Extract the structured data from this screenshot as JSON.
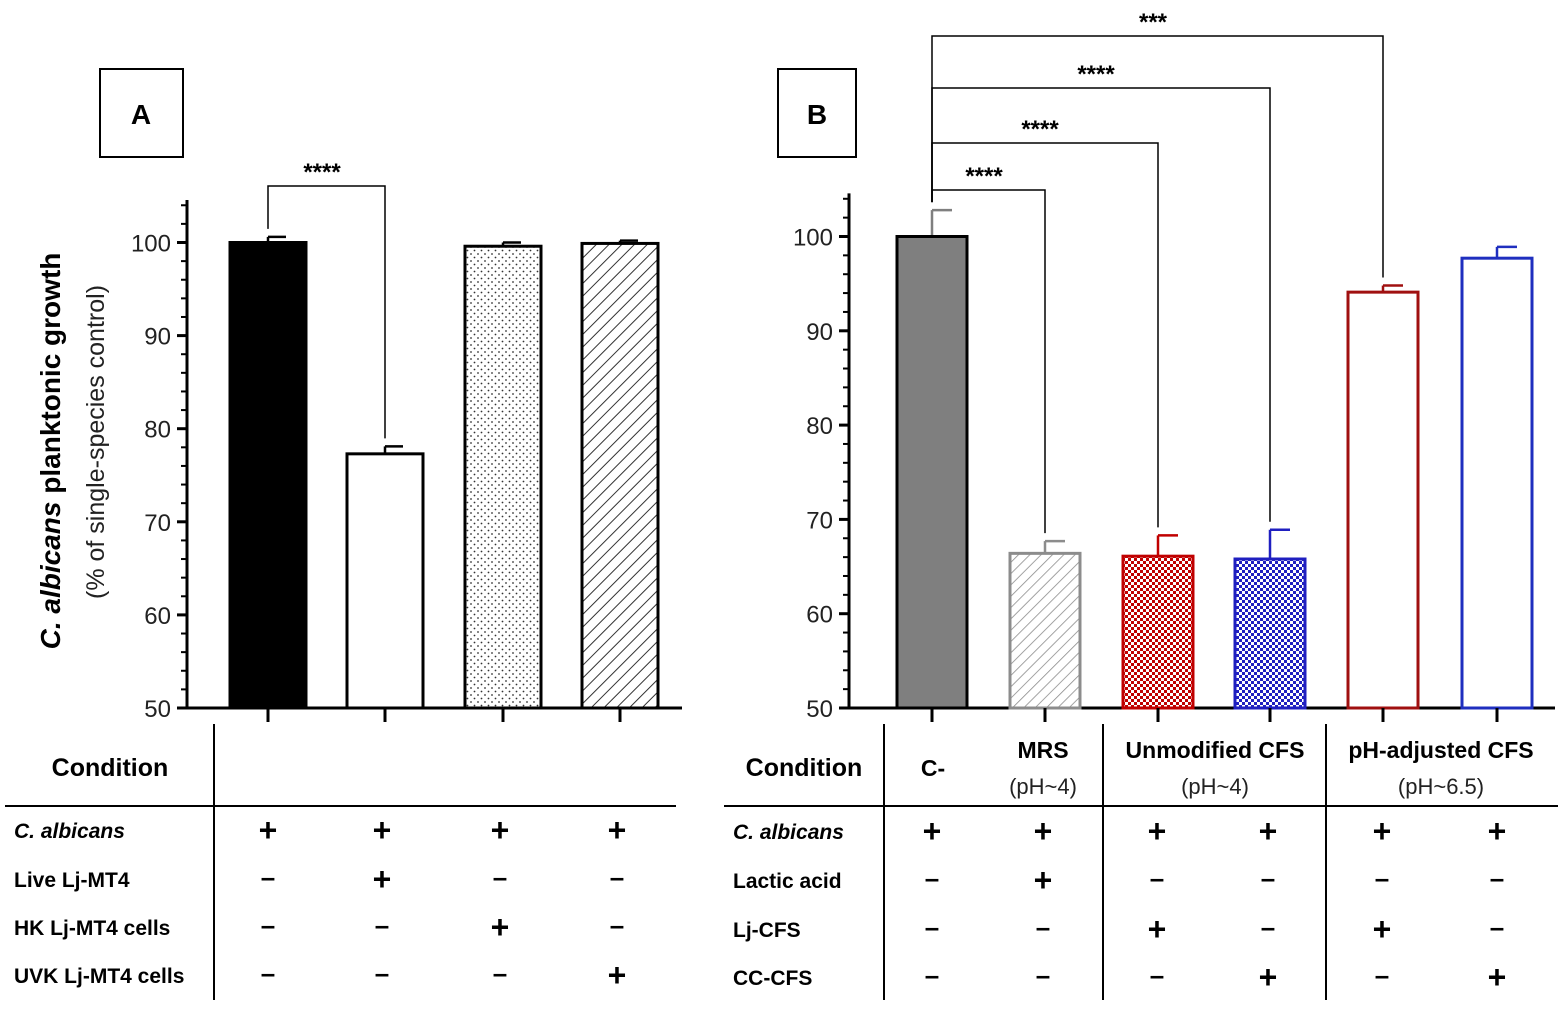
{
  "chart_data": [
    {
      "panel": "A",
      "type": "bar",
      "ylabel_italic": "C. albicans",
      "ylabel_rest": " planktonic growth",
      "ylabel_sub": "(% of single-species control)",
      "ylim": [
        50,
        105
      ],
      "yticks": [
        50,
        60,
        70,
        80,
        90,
        100
      ],
      "bars": [
        {
          "value": 100,
          "error": 0.6,
          "fill": "solid-black",
          "color": "#000000"
        },
        {
          "value": 77.3,
          "error": 0.8,
          "fill": "none",
          "color": "#000000"
        },
        {
          "value": 99.6,
          "error": 0.4,
          "fill": "dots",
          "color": "#000000"
        },
        {
          "value": 99.9,
          "error": 0.3,
          "fill": "hatch",
          "color": "#000000"
        }
      ],
      "significance": [
        {
          "from": 0,
          "to": 1,
          "label": "****"
        }
      ],
      "table": {
        "header": "Condition",
        "columns": [],
        "rows": [
          {
            "label": "C. albicans",
            "italic": true,
            "marks": [
              "+",
              "+",
              "+",
              "+"
            ]
          },
          {
            "label": "Live Lj-MT4",
            "italic": false,
            "marks": [
              "-",
              "+",
              "-",
              "-"
            ]
          },
          {
            "label": "HK Lj-MT4 cells",
            "italic": false,
            "marks": [
              "-",
              "-",
              "+",
              "-"
            ]
          },
          {
            "label": "UVK Lj-MT4 cells",
            "italic": false,
            "marks": [
              "-",
              "-",
              "-",
              "+"
            ]
          }
        ]
      }
    },
    {
      "panel": "B",
      "type": "bar",
      "ylim": [
        50,
        105
      ],
      "yticks": [
        50,
        60,
        70,
        80,
        90,
        100
      ],
      "bars": [
        {
          "value": 100,
          "error": 2.8,
          "fill": "solid-grey",
          "color": "#7f7f7f"
        },
        {
          "value": 66.4,
          "error": 1.3,
          "fill": "hatch",
          "color": "#8c8c8c"
        },
        {
          "value": 66.1,
          "error": 2.2,
          "fill": "check",
          "color": "#c00000"
        },
        {
          "value": 65.8,
          "error": 3.1,
          "fill": "check",
          "color": "#1f1fc0"
        },
        {
          "value": 94.1,
          "error": 0.7,
          "fill": "none",
          "color": "#a01010"
        },
        {
          "value": 97.7,
          "error": 1.2,
          "fill": "none",
          "color": "#1f2fbf"
        }
      ],
      "significance": [
        {
          "from": 0,
          "to": 1,
          "label": "****"
        },
        {
          "from": 0,
          "to": 2,
          "label": "****"
        },
        {
          "from": 0,
          "to": 3,
          "label": "****"
        },
        {
          "from": 0,
          "to": 4,
          "label": "***"
        }
      ],
      "table": {
        "header": "Condition",
        "columns": [
          {
            "label": "C-",
            "sub": ""
          },
          {
            "label": "MRS",
            "sub": "(pH~4)"
          },
          {
            "label": "Unmodified CFS",
            "sub": "(pH~4)"
          },
          {
            "label": "pH-adjusted CFS",
            "sub": "(pH~6.5)"
          }
        ],
        "rows": [
          {
            "label": "C. albicans",
            "italic": true,
            "marks": [
              "+",
              "+",
              "+",
              "+",
              "+",
              "+"
            ]
          },
          {
            "label": "Lactic acid",
            "italic": false,
            "marks": [
              "-",
              "+",
              "-",
              "-",
              "-",
              "-"
            ]
          },
          {
            "label": "Lj-CFS",
            "italic": false,
            "marks": [
              "-",
              "-",
              "+",
              "-",
              "+",
              "-"
            ]
          },
          {
            "label": "CC-CFS",
            "italic": false,
            "marks": [
              "-",
              "-",
              "-",
              "+",
              "-",
              "+"
            ]
          }
        ]
      }
    }
  ]
}
